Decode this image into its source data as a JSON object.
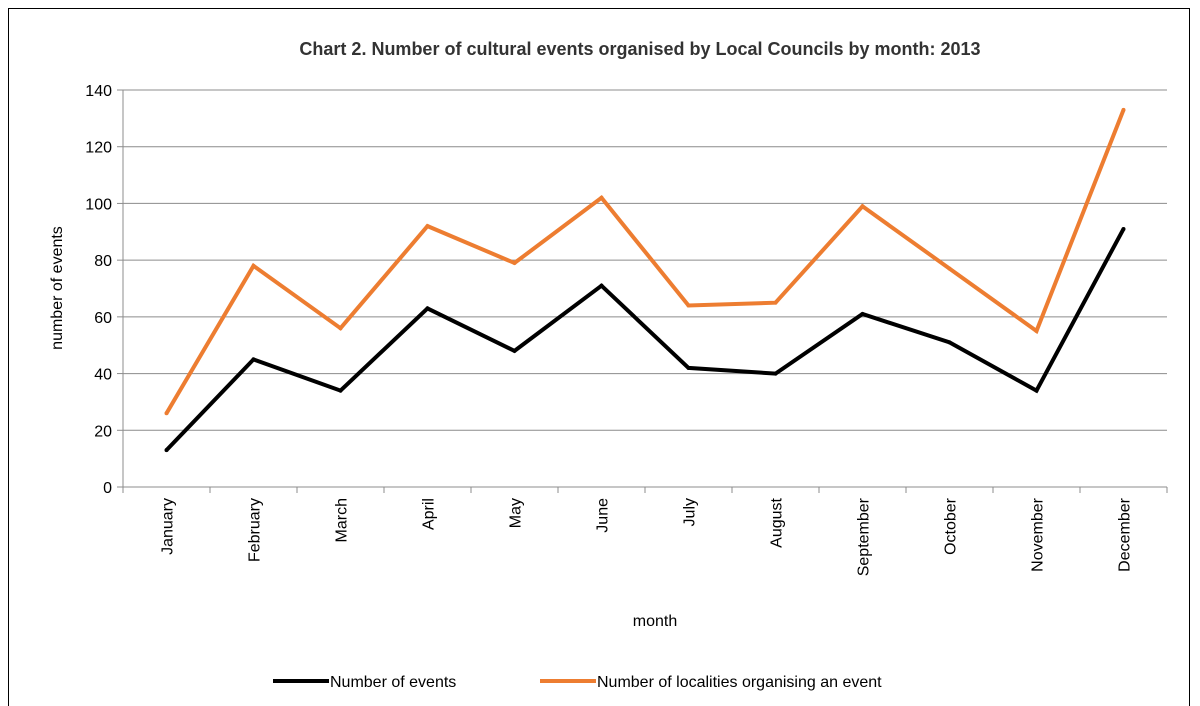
{
  "chart_data": {
    "type": "line",
    "title": "Chart 2. Number of cultural events organised by Local Councils by month: 2013",
    "xlabel": "month",
    "ylabel": "number of events",
    "categories": [
      "January",
      "February",
      "March",
      "April",
      "May",
      "June",
      "July",
      "August",
      "September",
      "October",
      "November",
      "December"
    ],
    "ylim": [
      0,
      140
    ],
    "yticks": [
      0,
      20,
      40,
      60,
      80,
      100,
      120,
      140
    ],
    "grid": true,
    "legend_position": "bottom",
    "series": [
      {
        "name": "Number of events",
        "color": "#000000",
        "values": [
          13,
          45,
          34,
          63,
          48,
          71,
          42,
          40,
          61,
          51,
          34,
          91
        ]
      },
      {
        "name": "Number of localities organising an event",
        "color": "#ED7D31",
        "values": [
          26,
          78,
          56,
          92,
          79,
          102,
          64,
          65,
          99,
          77,
          55,
          133
        ]
      }
    ]
  }
}
